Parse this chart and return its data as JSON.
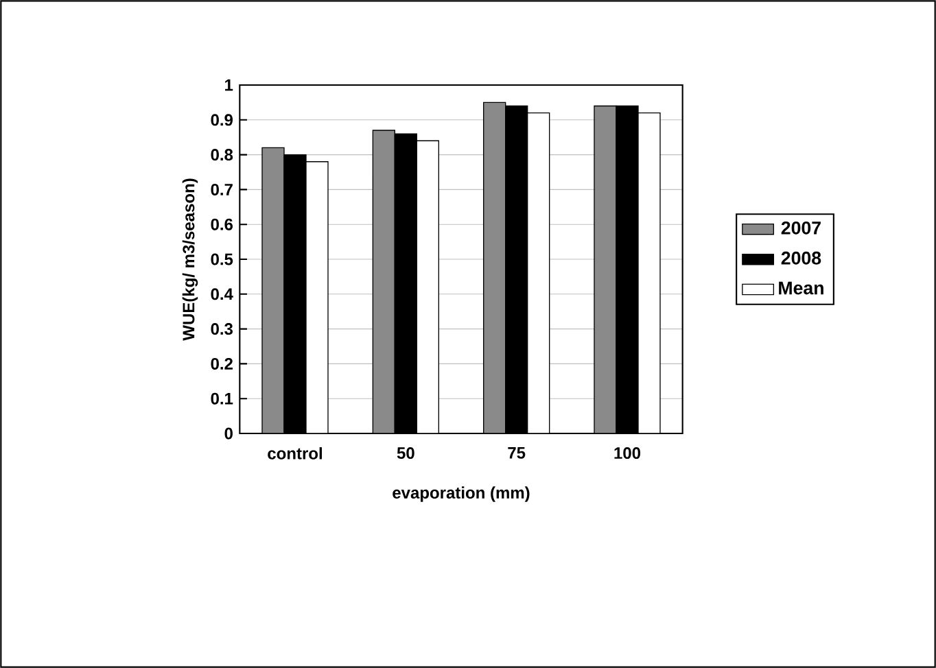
{
  "chart_data": {
    "type": "bar",
    "xlabel": "evaporation (mm)",
    "ylabel": "WUE(kg/ m3/season)",
    "categories": [
      "control",
      "50",
      "75",
      "100"
    ],
    "series": [
      {
        "name": "2007",
        "color": "#8a8a8a",
        "values": [
          0.82,
          0.87,
          0.95,
          0.94
        ]
      },
      {
        "name": "2008",
        "color": "#000000",
        "values": [
          0.8,
          0.86,
          0.94,
          0.94
        ]
      },
      {
        "name": "Mean",
        "color": "#ffffff",
        "values": [
          0.78,
          0.84,
          0.92,
          0.92
        ]
      }
    ],
    "ylim": [
      0,
      1
    ],
    "yticks": [
      0,
      0.1,
      0.2,
      0.3,
      0.4,
      0.5,
      0.6,
      0.7,
      0.8,
      0.9,
      1
    ],
    "grid": "y",
    "legend": "right"
  }
}
